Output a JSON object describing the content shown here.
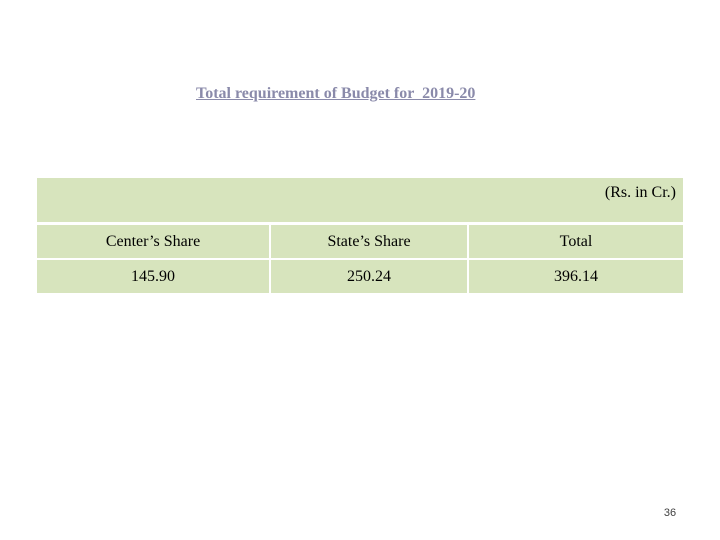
{
  "title": "Total requirement of Budget for  2019-20",
  "unit_note": "(Rs. in Cr.)",
  "table": {
    "headers": [
      "Center’s Share",
      "State’s Share",
      "Total"
    ],
    "values": [
      "145.90",
      "250.24",
      "396.14"
    ]
  },
  "page_number": "36",
  "colors": {
    "table_fill": "#d7e4bd",
    "title_color": "#8a8aaa"
  }
}
